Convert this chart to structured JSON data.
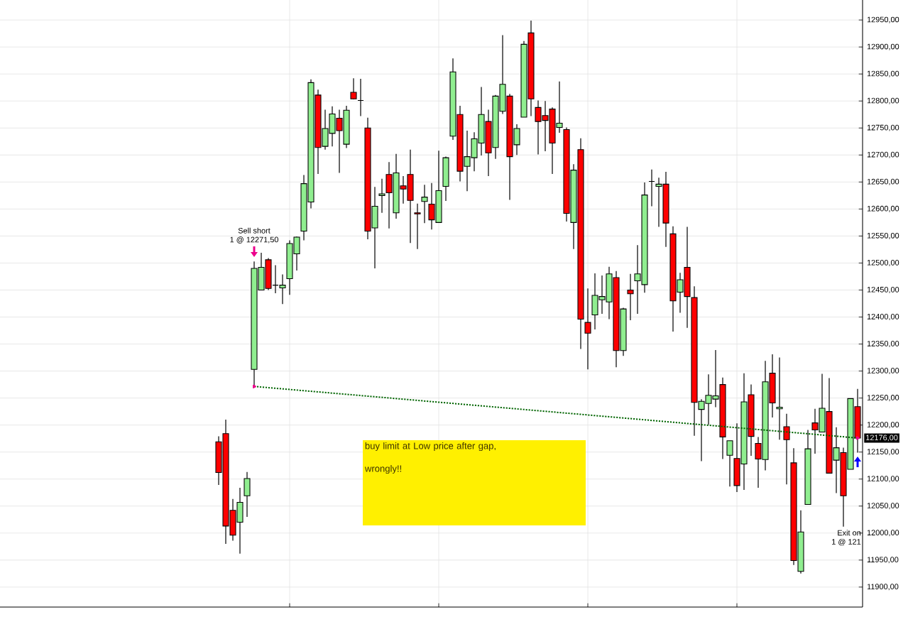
{
  "chart_data": {
    "type": "candlestick",
    "categories": [
      null,
      null,
      null,
      null,
      null,
      null,
      null,
      null,
      null,
      null,
      null,
      null,
      null,
      null,
      null,
      null,
      null,
      null,
      null,
      null,
      null,
      null,
      null,
      null,
      null,
      null,
      null,
      null,
      null,
      null,
      null,
      null,
      null,
      null,
      null,
      null,
      null,
      null,
      null,
      null,
      null,
      null,
      null,
      null,
      null,
      null,
      null,
      null,
      null,
      null,
      null,
      null,
      null,
      null,
      null,
      null,
      null,
      null,
      null,
      null,
      null,
      null,
      null,
      null,
      null,
      null,
      null,
      null,
      null,
      null,
      null,
      null,
      null,
      null,
      null,
      null,
      null,
      null,
      null,
      null,
      null,
      null,
      null,
      null,
      null,
      null,
      null,
      null,
      null,
      null,
      null
    ],
    "ohlc": [
      [
        12169,
        12179,
        12089,
        12112
      ],
      [
        12184,
        12210,
        11980,
        12013
      ],
      [
        12042,
        12063,
        11986,
        11996
      ],
      [
        12020,
        12084,
        11962,
        12057
      ],
      [
        12069,
        12113,
        12030,
        12101
      ],
      [
        12303,
        12503,
        12271.5,
        12490
      ],
      [
        12450,
        12519,
        12450,
        12492
      ],
      [
        12506,
        12509,
        12450,
        12453
      ],
      [
        12459,
        12496,
        12444,
        12459
      ],
      [
        12454,
        12479,
        12424,
        12459
      ],
      [
        12471,
        12542,
        12441,
        12536
      ],
      [
        12517,
        12549,
        12486,
        12548
      ],
      [
        12559,
        12663,
        12542,
        12647
      ],
      [
        12613,
        12840,
        12601,
        12834
      ],
      [
        12811,
        12821,
        12665,
        12714
      ],
      [
        12716,
        12784,
        12710,
        12749
      ],
      [
        12740,
        12790,
        12716,
        12776
      ],
      [
        12768,
        12784,
        12667,
        12745
      ],
      [
        12720,
        12791,
        12713,
        12783
      ],
      [
        12816,
        12842,
        12803,
        12804
      ],
      [
        12801,
        12841,
        12772,
        12801
      ],
      [
        12750,
        12769,
        12544,
        12559
      ],
      [
        12565,
        12641,
        12490,
        12605
      ],
      [
        12625,
        12656,
        12593,
        12628
      ],
      [
        12664,
        12687,
        12564,
        12630
      ],
      [
        12593,
        12702,
        12582,
        12667
      ],
      [
        12643,
        12661,
        12610,
        12637
      ],
      [
        12664,
        12710,
        12537,
        12616
      ],
      [
        12593,
        12610,
        12526,
        12591
      ],
      [
        12614,
        12645,
        12574,
        12622
      ],
      [
        12609,
        12648,
        12562,
        12580
      ],
      [
        12575,
        12708,
        12575,
        12634
      ],
      [
        12642,
        12697,
        12615,
        12695
      ],
      [
        12735,
        12879,
        12728,
        12854
      ],
      [
        12775,
        12791,
        12651,
        12670
      ],
      [
        12679,
        12745,
        12633,
        12697
      ],
      [
        12695,
        12742,
        12670,
        12730
      ],
      [
        12722,
        12826,
        12699,
        12775
      ],
      [
        12762,
        12784,
        12661,
        12704
      ],
      [
        12714,
        12811,
        12693,
        12809
      ],
      [
        12781,
        12922,
        12776,
        12831
      ],
      [
        12809,
        12813,
        12617,
        12697
      ],
      [
        12719,
        12757,
        12700,
        12749
      ],
      [
        12770,
        12911,
        12770,
        12905
      ],
      [
        12926,
        12949,
        12772,
        12804
      ],
      [
        12788,
        12801,
        12701,
        12762
      ],
      [
        12773,
        12800,
        12707,
        12764
      ],
      [
        12785,
        12788,
        12665,
        12722
      ],
      [
        12751,
        12836,
        12741,
        12759
      ],
      [
        12747,
        12751,
        12577,
        12592
      ],
      [
        12575,
        12683,
        12526,
        12672
      ],
      [
        12710,
        12731,
        12341,
        12396
      ],
      [
        12390,
        12453,
        12303,
        12370
      ],
      [
        12404,
        12481,
        12377,
        12440
      ],
      [
        12432,
        12477,
        12406,
        12438
      ],
      [
        12428,
        12493,
        12396,
        12480
      ],
      [
        12473,
        12485,
        12307,
        12338
      ],
      [
        12338,
        12417,
        12328,
        12415
      ],
      [
        12450,
        12480,
        12394,
        12443
      ],
      [
        12467,
        12533,
        12406,
        12480
      ],
      [
        12460,
        12649,
        12445,
        12626
      ],
      [
        12651,
        12673,
        12605,
        12651
      ],
      [
        12642,
        12658,
        12567,
        12646
      ],
      [
        12646,
        12669,
        12530,
        12574
      ],
      [
        12554,
        12568,
        12373,
        12430
      ],
      [
        12446,
        12482,
        12408,
        12469
      ],
      [
        12492,
        12567,
        12380,
        12438
      ],
      [
        12436,
        12457,
        12180,
        12242
      ],
      [
        12229,
        12248,
        12133,
        12244
      ],
      [
        12240,
        12294,
        12201,
        12255
      ],
      [
        12248,
        12339,
        12233,
        12254
      ],
      [
        12275,
        12288,
        12137,
        12178
      ],
      [
        12144,
        12171,
        12086,
        12171
      ],
      [
        12138,
        12203,
        12076,
        12088
      ],
      [
        12128,
        12296,
        12080,
        12243
      ],
      [
        12256,
        12275,
        12143,
        12179
      ],
      [
        12166,
        12178,
        12084,
        12137
      ],
      [
        12136,
        12319,
        12116,
        12280
      ],
      [
        12296,
        12331,
        12214,
        12241
      ],
      [
        12230,
        12325,
        12173,
        12233
      ],
      [
        12197,
        12221,
        12090,
        12173
      ],
      [
        12130,
        12157,
        11941,
        11949
      ],
      [
        11929,
        12042,
        11925,
        12002
      ],
      [
        12053,
        12191,
        12053,
        12156
      ],
      [
        12204,
        12230,
        12147,
        12191
      ],
      [
        12187,
        12295,
        12187,
        12231
      ],
      [
        12225,
        12287,
        12111,
        12111
      ],
      [
        12135,
        12196,
        12074,
        12158
      ],
      [
        12149,
        12158,
        12012,
        12069
      ],
      [
        12118,
        12249,
        12118,
        12249
      ],
      [
        12234,
        12267,
        12149,
        12176
      ]
    ],
    "colors": [
      "#ff0000",
      "#ff0000",
      "#ff0000",
      "#90ee90",
      "#90ee90",
      "#90ee90",
      "#90ee90",
      "#ff0000",
      "#000000",
      "#90ee90",
      "#90ee90",
      "#90ee90",
      "#90ee90",
      "#90ee90",
      "#ff0000",
      "#90ee90",
      "#90ee90",
      "#ff0000",
      "#90ee90",
      "#ff0000",
      "#000000",
      "#ff0000",
      "#90ee90",
      "#90ee90",
      "#ff0000",
      "#90ee90",
      "#ff0000",
      "#ff0000",
      "#ff0000",
      "#90ee90",
      "#ff0000",
      "#90ee90",
      "#90ee90",
      "#90ee90",
      "#ff0000",
      "#90ee90",
      "#90ee90",
      "#90ee90",
      "#ff0000",
      "#90ee90",
      "#90ee90",
      "#ff0000",
      "#90ee90",
      "#90ee90",
      "#ff0000",
      "#ff0000",
      "#ff0000",
      "#ff0000",
      "#90ee90",
      "#ff0000",
      "#90ee90",
      "#ff0000",
      "#ff0000",
      "#90ee90",
      "#90ee90",
      "#90ee90",
      "#ff0000",
      "#90ee90",
      "#ff0000",
      "#90ee90",
      "#90ee90",
      "#000000",
      "#90ee90",
      "#ff0000",
      "#ff0000",
      "#90ee90",
      "#ff0000",
      "#ff0000",
      "#90ee90",
      "#90ee90",
      "#90ee90",
      "#ff0000",
      "#90ee90",
      "#ff0000",
      "#90ee90",
      "#ff0000",
      "#ff0000",
      "#90ee90",
      "#ff0000",
      "#90ee90",
      "#ff0000",
      "#ff0000",
      "#90ee90",
      "#90ee90",
      "#ff0000",
      "#90ee90",
      "#ff0000",
      "#90ee90",
      "#ff0000",
      "#90ee90",
      "#ff0000"
    ],
    "series": [
      {
        "type": "line",
        "color": "#006400",
        "line_style": "dotted",
        "marker": "triangle",
        "values": [
          null,
          null,
          null,
          null,
          null,
          12271.5,
          null,
          null,
          null,
          null,
          null,
          null,
          null,
          null,
          null,
          null,
          null,
          null,
          null,
          null,
          null,
          null,
          null,
          null,
          null,
          null,
          null,
          null,
          null,
          null,
          null,
          null,
          null,
          null,
          null,
          null,
          null,
          null,
          null,
          null,
          null,
          null,
          null,
          null,
          null,
          null,
          null,
          null,
          null,
          null,
          null,
          null,
          null,
          null,
          null,
          null,
          null,
          null,
          null,
          null,
          null,
          null,
          null,
          null,
          null,
          null,
          null,
          null,
          null,
          null,
          null,
          null,
          null,
          null,
          null,
          null,
          null,
          null,
          null,
          null,
          null,
          null,
          null,
          null,
          null,
          null,
          null,
          null,
          null,
          null,
          12176
        ]
      }
    ],
    "ylim": [
      11863,
      12987
    ],
    "yticks": [
      {
        "value": 11900,
        "label": "11900,00"
      },
      {
        "value": 11950,
        "label": "11950,00"
      },
      {
        "value": 12000,
        "label": "12000,00"
      },
      {
        "value": 12050,
        "label": "12050,00"
      },
      {
        "value": 12100,
        "label": "12100,00"
      },
      {
        "value": 12150,
        "label": "12150,00"
      },
      {
        "value": 12200,
        "label": "12200,00"
      },
      {
        "value": 12250,
        "label": "12250,00"
      },
      {
        "value": 12300,
        "label": "12300,00"
      },
      {
        "value": 12350,
        "label": "12350,00"
      },
      {
        "value": 12400,
        "label": "12400,00"
      },
      {
        "value": 12450,
        "label": "12450,00"
      },
      {
        "value": 12500,
        "label": "12500,00"
      },
      {
        "value": 12550,
        "label": "12550,00"
      },
      {
        "value": 12600,
        "label": "12600,00"
      },
      {
        "value": 12650,
        "label": "12650,00"
      },
      {
        "value": 12700,
        "label": "12700,00"
      },
      {
        "value": 12750,
        "label": "12750,00"
      },
      {
        "value": 12800,
        "label": "12800,00"
      },
      {
        "value": 12850,
        "label": "12850,00"
      },
      {
        "value": 12900,
        "label": "12900,00"
      },
      {
        "value": 12950,
        "label": "12950,00"
      }
    ],
    "grid": true,
    "tick_labels": "y",
    "annotations": [
      "Sell short",
      "1 @ 12271,50",
      "buy limit at Low price after gap,",
      "wrongly!!",
      "Exit on",
      "1 @ 121",
      "12176,00"
    ]
  }
}
